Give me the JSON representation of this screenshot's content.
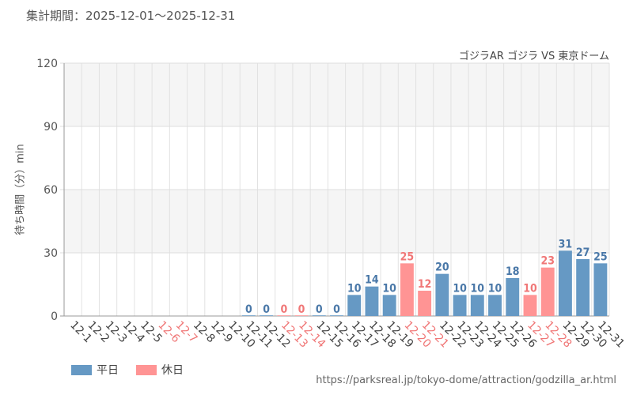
{
  "header": {
    "period": "集計期間：2025-12-01～2025-12-31",
    "attraction": "ゴジラAR ゴジラ VS 東京ドーム"
  },
  "legend": {
    "weekday_label": "平日",
    "holiday_label": "休日"
  },
  "footer": {
    "source": "https://parksreal.jp/tokyo-dome/attraction/godzilla_ar.html"
  },
  "colors": {
    "weekday": "#6699c4",
    "holiday": "#ff9494",
    "weekday_label": "#4a78a8",
    "holiday_label": "#f07777",
    "axis_label": "#555555",
    "grid": "#e2e2e2",
    "band": "#f5f5f5"
  },
  "chart_data": {
    "type": "bar",
    "ylabel": "待ち時間（分）min",
    "ylim": [
      0,
      120
    ],
    "yticks": [
      0,
      30,
      60,
      90,
      120
    ],
    "categories": [
      "12-1",
      "12-2",
      "12-3",
      "12-4",
      "12-5",
      "12-6",
      "12-7",
      "12-8",
      "12-9",
      "12-10",
      "12-11",
      "12-12",
      "12-13",
      "12-14",
      "12-15",
      "12-16",
      "12-17",
      "12-18",
      "12-19",
      "12-20",
      "12-21",
      "12-22",
      "12-23",
      "12-24",
      "12-25",
      "12-26",
      "12-27",
      "12-28",
      "12-29",
      "12-30",
      "12-31"
    ],
    "holiday": [
      false,
      false,
      false,
      false,
      false,
      true,
      true,
      false,
      false,
      false,
      false,
      false,
      true,
      true,
      false,
      false,
      false,
      false,
      false,
      true,
      true,
      false,
      false,
      false,
      false,
      false,
      true,
      true,
      false,
      false,
      false
    ],
    "values": [
      null,
      null,
      null,
      null,
      null,
      null,
      null,
      null,
      null,
      null,
      0,
      0,
      0,
      0,
      0,
      0,
      10,
      14,
      10,
      25,
      12,
      20,
      10,
      10,
      10,
      18,
      10,
      23,
      31,
      27,
      25
    ],
    "series": [
      {
        "name": "平日",
        "color": "#6699c4"
      },
      {
        "name": "休日",
        "color": "#ff9494"
      }
    ],
    "grid": true,
    "legend_position": "bottom-left"
  }
}
